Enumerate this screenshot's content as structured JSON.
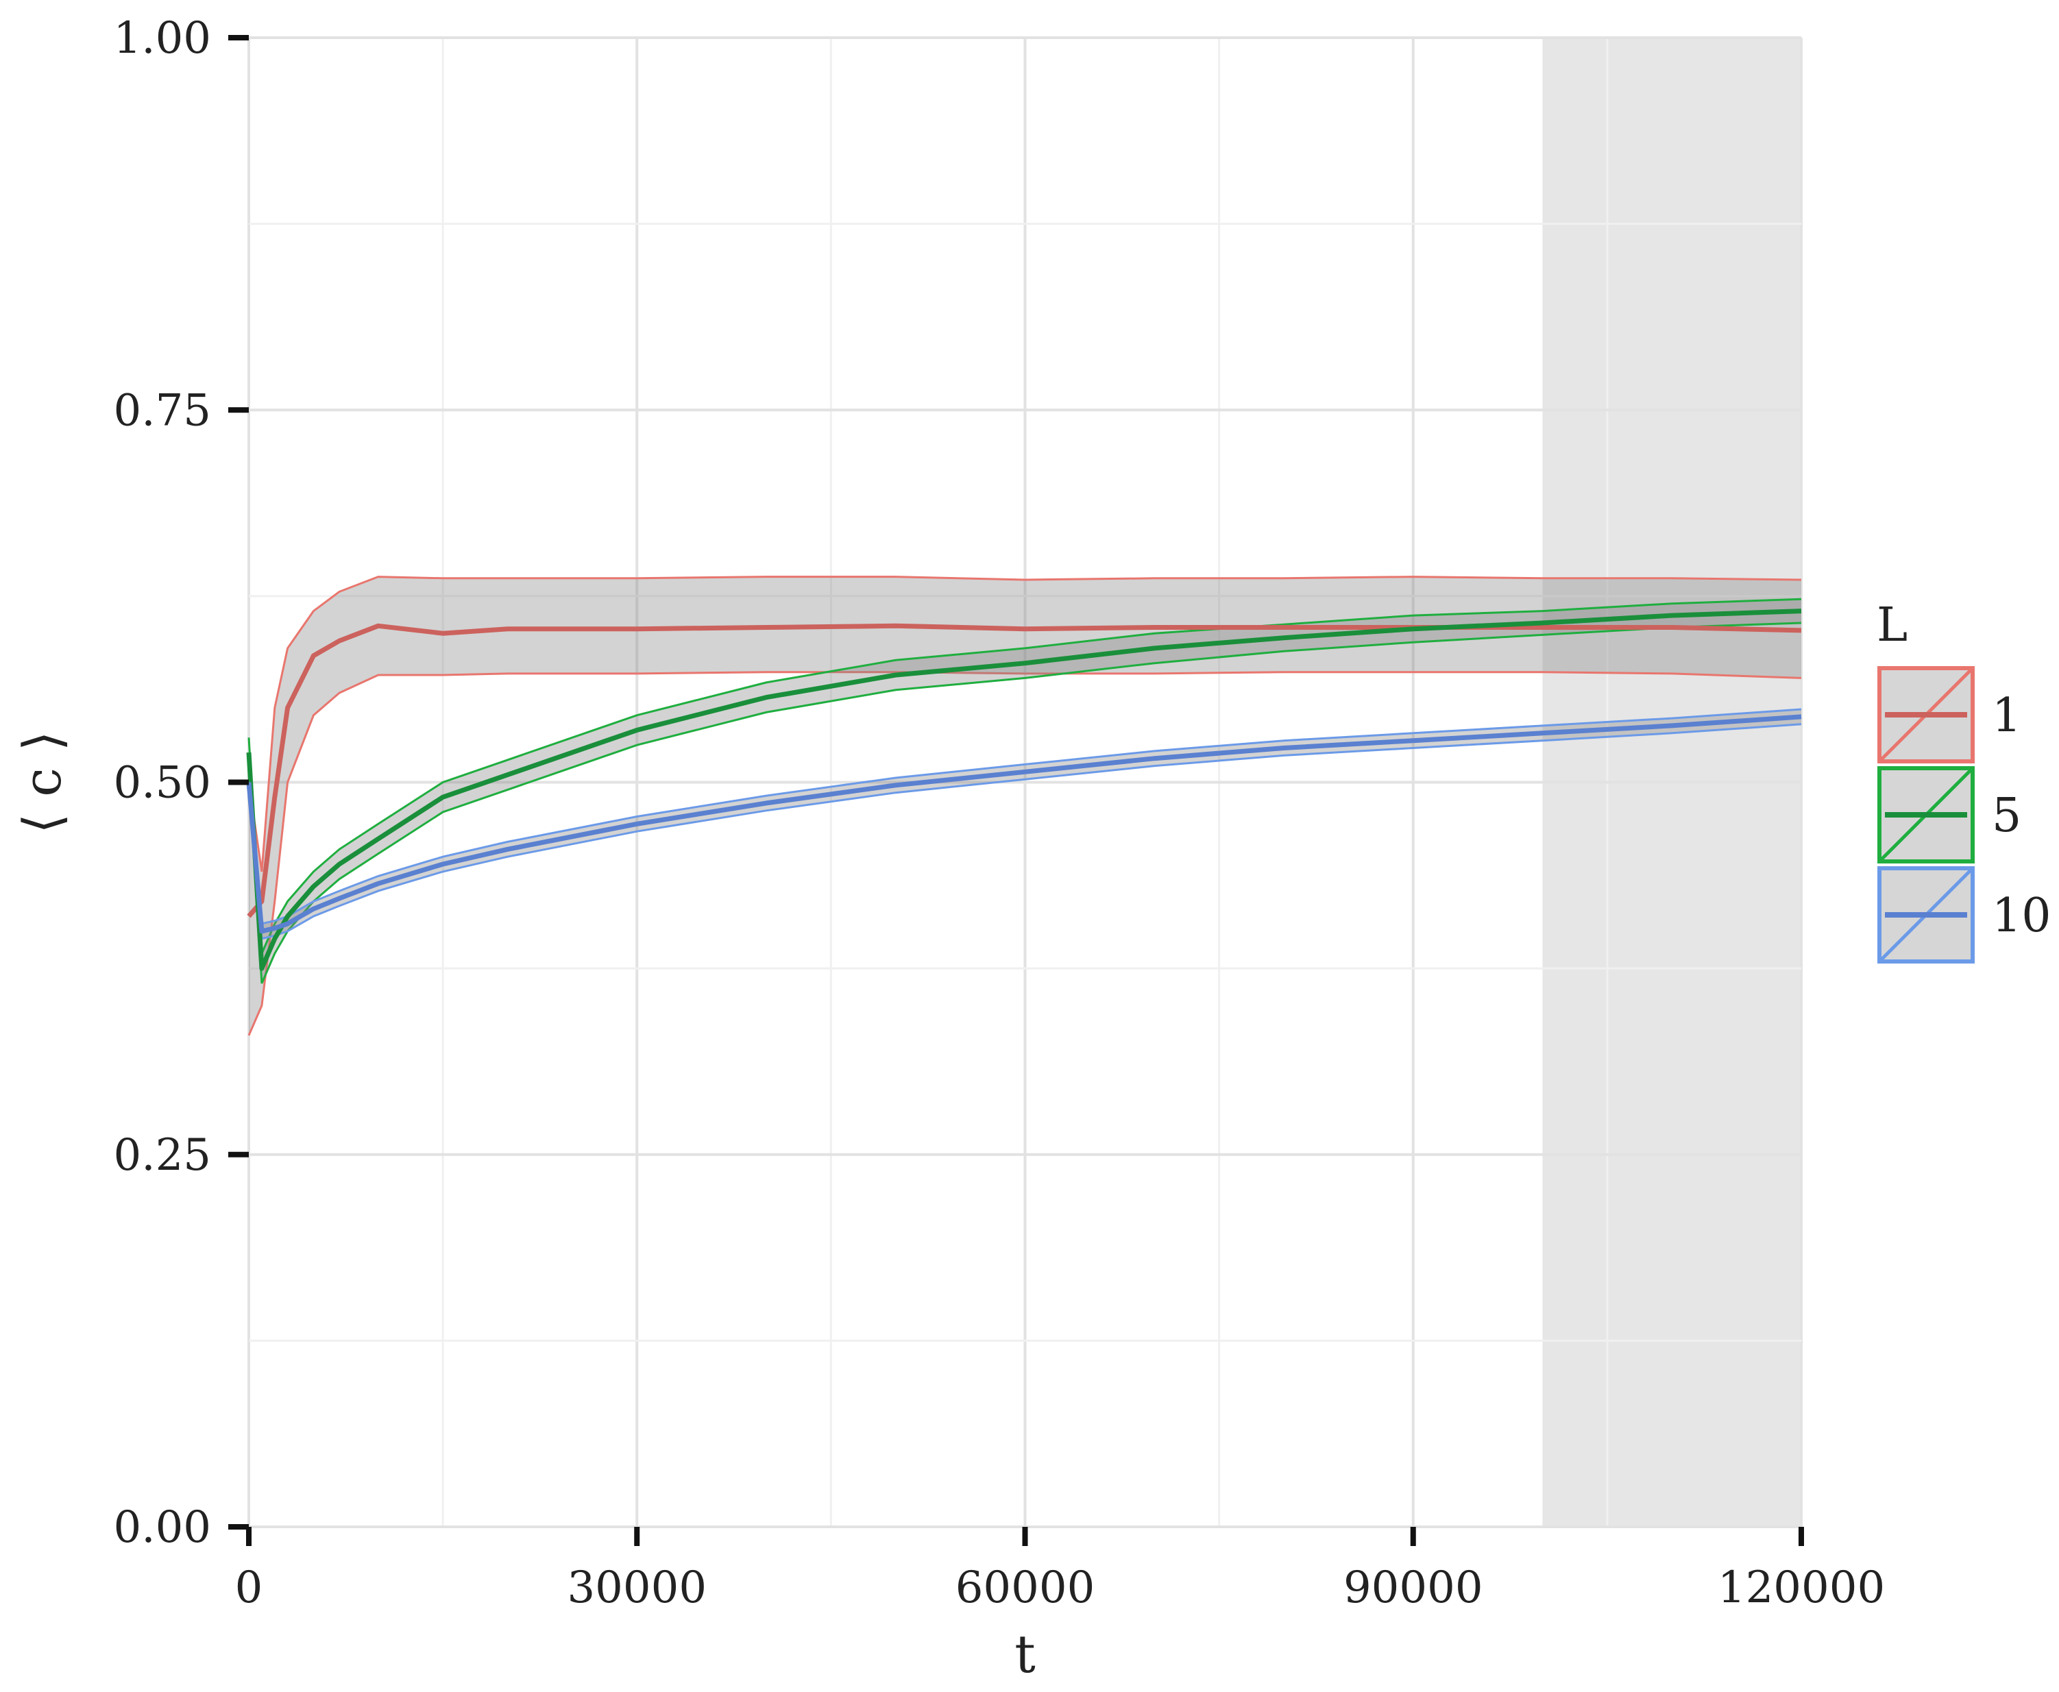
{
  "chart_data": {
    "type": "line",
    "xlabel": "t",
    "ylabel": "⟨ c ⟩",
    "xlim": [
      0,
      120000
    ],
    "ylim": [
      0,
      1
    ],
    "x_ticks": [
      0,
      30000,
      60000,
      90000,
      120000
    ],
    "y_ticks": [
      0.0,
      0.25,
      0.5,
      0.75,
      1.0
    ],
    "x_tick_labels": [
      "0",
      "30000",
      "60000",
      "90000",
      "120000"
    ],
    "y_tick_labels": [
      "0.00",
      "0.25",
      "0.50",
      "0.75",
      "1.00"
    ],
    "grid": true,
    "shaded_region": {
      "x": [
        100000,
        120000
      ]
    },
    "legend": {
      "title": "L",
      "placement": "right"
    },
    "series": [
      {
        "name": "1",
        "color": "#e8766e",
        "line_color": "#cc625d",
        "x": [
          0,
          1000,
          2000,
          3000,
          5000,
          7000,
          10000,
          15000,
          20000,
          30000,
          40000,
          50000,
          60000,
          70000,
          80000,
          90000,
          100000,
          110000,
          120000
        ],
        "mean": [
          0.41,
          0.42,
          0.49,
          0.55,
          0.585,
          0.595,
          0.605,
          0.6,
          0.603,
          0.603,
          0.604,
          0.605,
          0.603,
          0.604,
          0.604,
          0.604,
          0.604,
          0.604,
          0.602
        ],
        "lower": [
          0.33,
          0.35,
          0.42,
          0.5,
          0.545,
          0.56,
          0.572,
          0.572,
          0.573,
          0.573,
          0.574,
          0.574,
          0.573,
          0.573,
          0.574,
          0.574,
          0.574,
          0.573,
          0.57
        ],
        "upper": [
          0.5,
          0.44,
          0.55,
          0.59,
          0.615,
          0.628,
          0.638,
          0.637,
          0.637,
          0.637,
          0.638,
          0.638,
          0.636,
          0.637,
          0.637,
          0.638,
          0.637,
          0.637,
          0.636
        ]
      },
      {
        "name": "5",
        "color": "#1fae3f",
        "line_color": "#1a8f3b",
        "x": [
          0,
          1000,
          2000,
          3000,
          5000,
          7000,
          10000,
          15000,
          20000,
          30000,
          40000,
          50000,
          60000,
          70000,
          80000,
          90000,
          100000,
          110000,
          120000
        ],
        "mean": [
          0.52,
          0.375,
          0.395,
          0.41,
          0.43,
          0.445,
          0.462,
          0.49,
          0.505,
          0.535,
          0.557,
          0.572,
          0.58,
          0.59,
          0.597,
          0.603,
          0.607,
          0.612,
          0.615
        ],
        "lower": [
          0.51,
          0.365,
          0.385,
          0.4,
          0.42,
          0.435,
          0.452,
          0.48,
          0.495,
          0.525,
          0.547,
          0.562,
          0.57,
          0.58,
          0.588,
          0.594,
          0.599,
          0.604,
          0.607
        ],
        "upper": [
          0.53,
          0.385,
          0.405,
          0.42,
          0.44,
          0.455,
          0.472,
          0.5,
          0.515,
          0.545,
          0.567,
          0.582,
          0.59,
          0.6,
          0.606,
          0.612,
          0.615,
          0.62,
          0.623
        ]
      },
      {
        "name": "10",
        "color": "#6b9ae8",
        "line_color": "#5a80d0",
        "x": [
          0,
          1000,
          2000,
          3000,
          5000,
          7000,
          10000,
          15000,
          20000,
          30000,
          40000,
          50000,
          60000,
          70000,
          80000,
          90000,
          100000,
          110000,
          120000
        ],
        "mean": [
          0.5,
          0.4,
          0.402,
          0.405,
          0.415,
          0.422,
          0.432,
          0.445,
          0.455,
          0.472,
          0.486,
          0.498,
          0.507,
          0.516,
          0.523,
          0.528,
          0.533,
          0.538,
          0.544
        ],
        "lower": [
          0.495,
          0.395,
          0.397,
          0.4,
          0.41,
          0.417,
          0.427,
          0.44,
          0.45,
          0.467,
          0.481,
          0.493,
          0.502,
          0.511,
          0.518,
          0.523,
          0.528,
          0.533,
          0.539
        ],
        "upper": [
          0.505,
          0.405,
          0.407,
          0.41,
          0.42,
          0.427,
          0.437,
          0.45,
          0.46,
          0.477,
          0.491,
          0.503,
          0.512,
          0.521,
          0.528,
          0.533,
          0.538,
          0.543,
          0.549
        ]
      }
    ]
  }
}
